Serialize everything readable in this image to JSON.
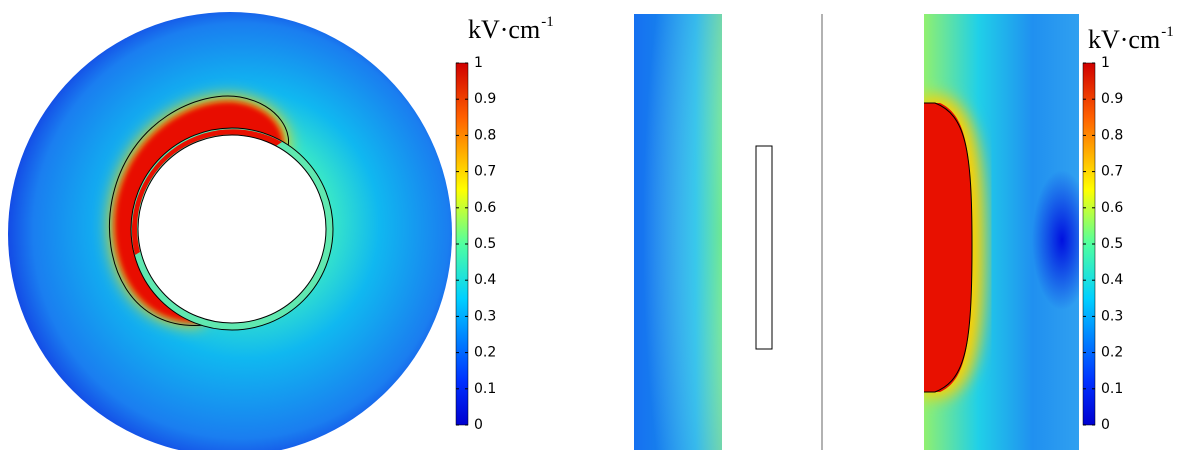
{
  "colorbars": [
    {
      "unit": "kV·cm",
      "unit_exponent": "-1",
      "range": [
        0,
        1
      ],
      "ticks": [
        0,
        0.1,
        0.2,
        0.3,
        0.4,
        0.5,
        0.6,
        0.7,
        0.8,
        0.9,
        1
      ]
    },
    {
      "unit": "kV·cm",
      "unit_exponent": "-1",
      "range": [
        0,
        1
      ],
      "ticks": [
        0,
        0.1,
        0.2,
        0.3,
        0.4,
        0.5,
        0.6,
        0.7,
        0.8,
        0.9,
        1
      ]
    }
  ]
}
